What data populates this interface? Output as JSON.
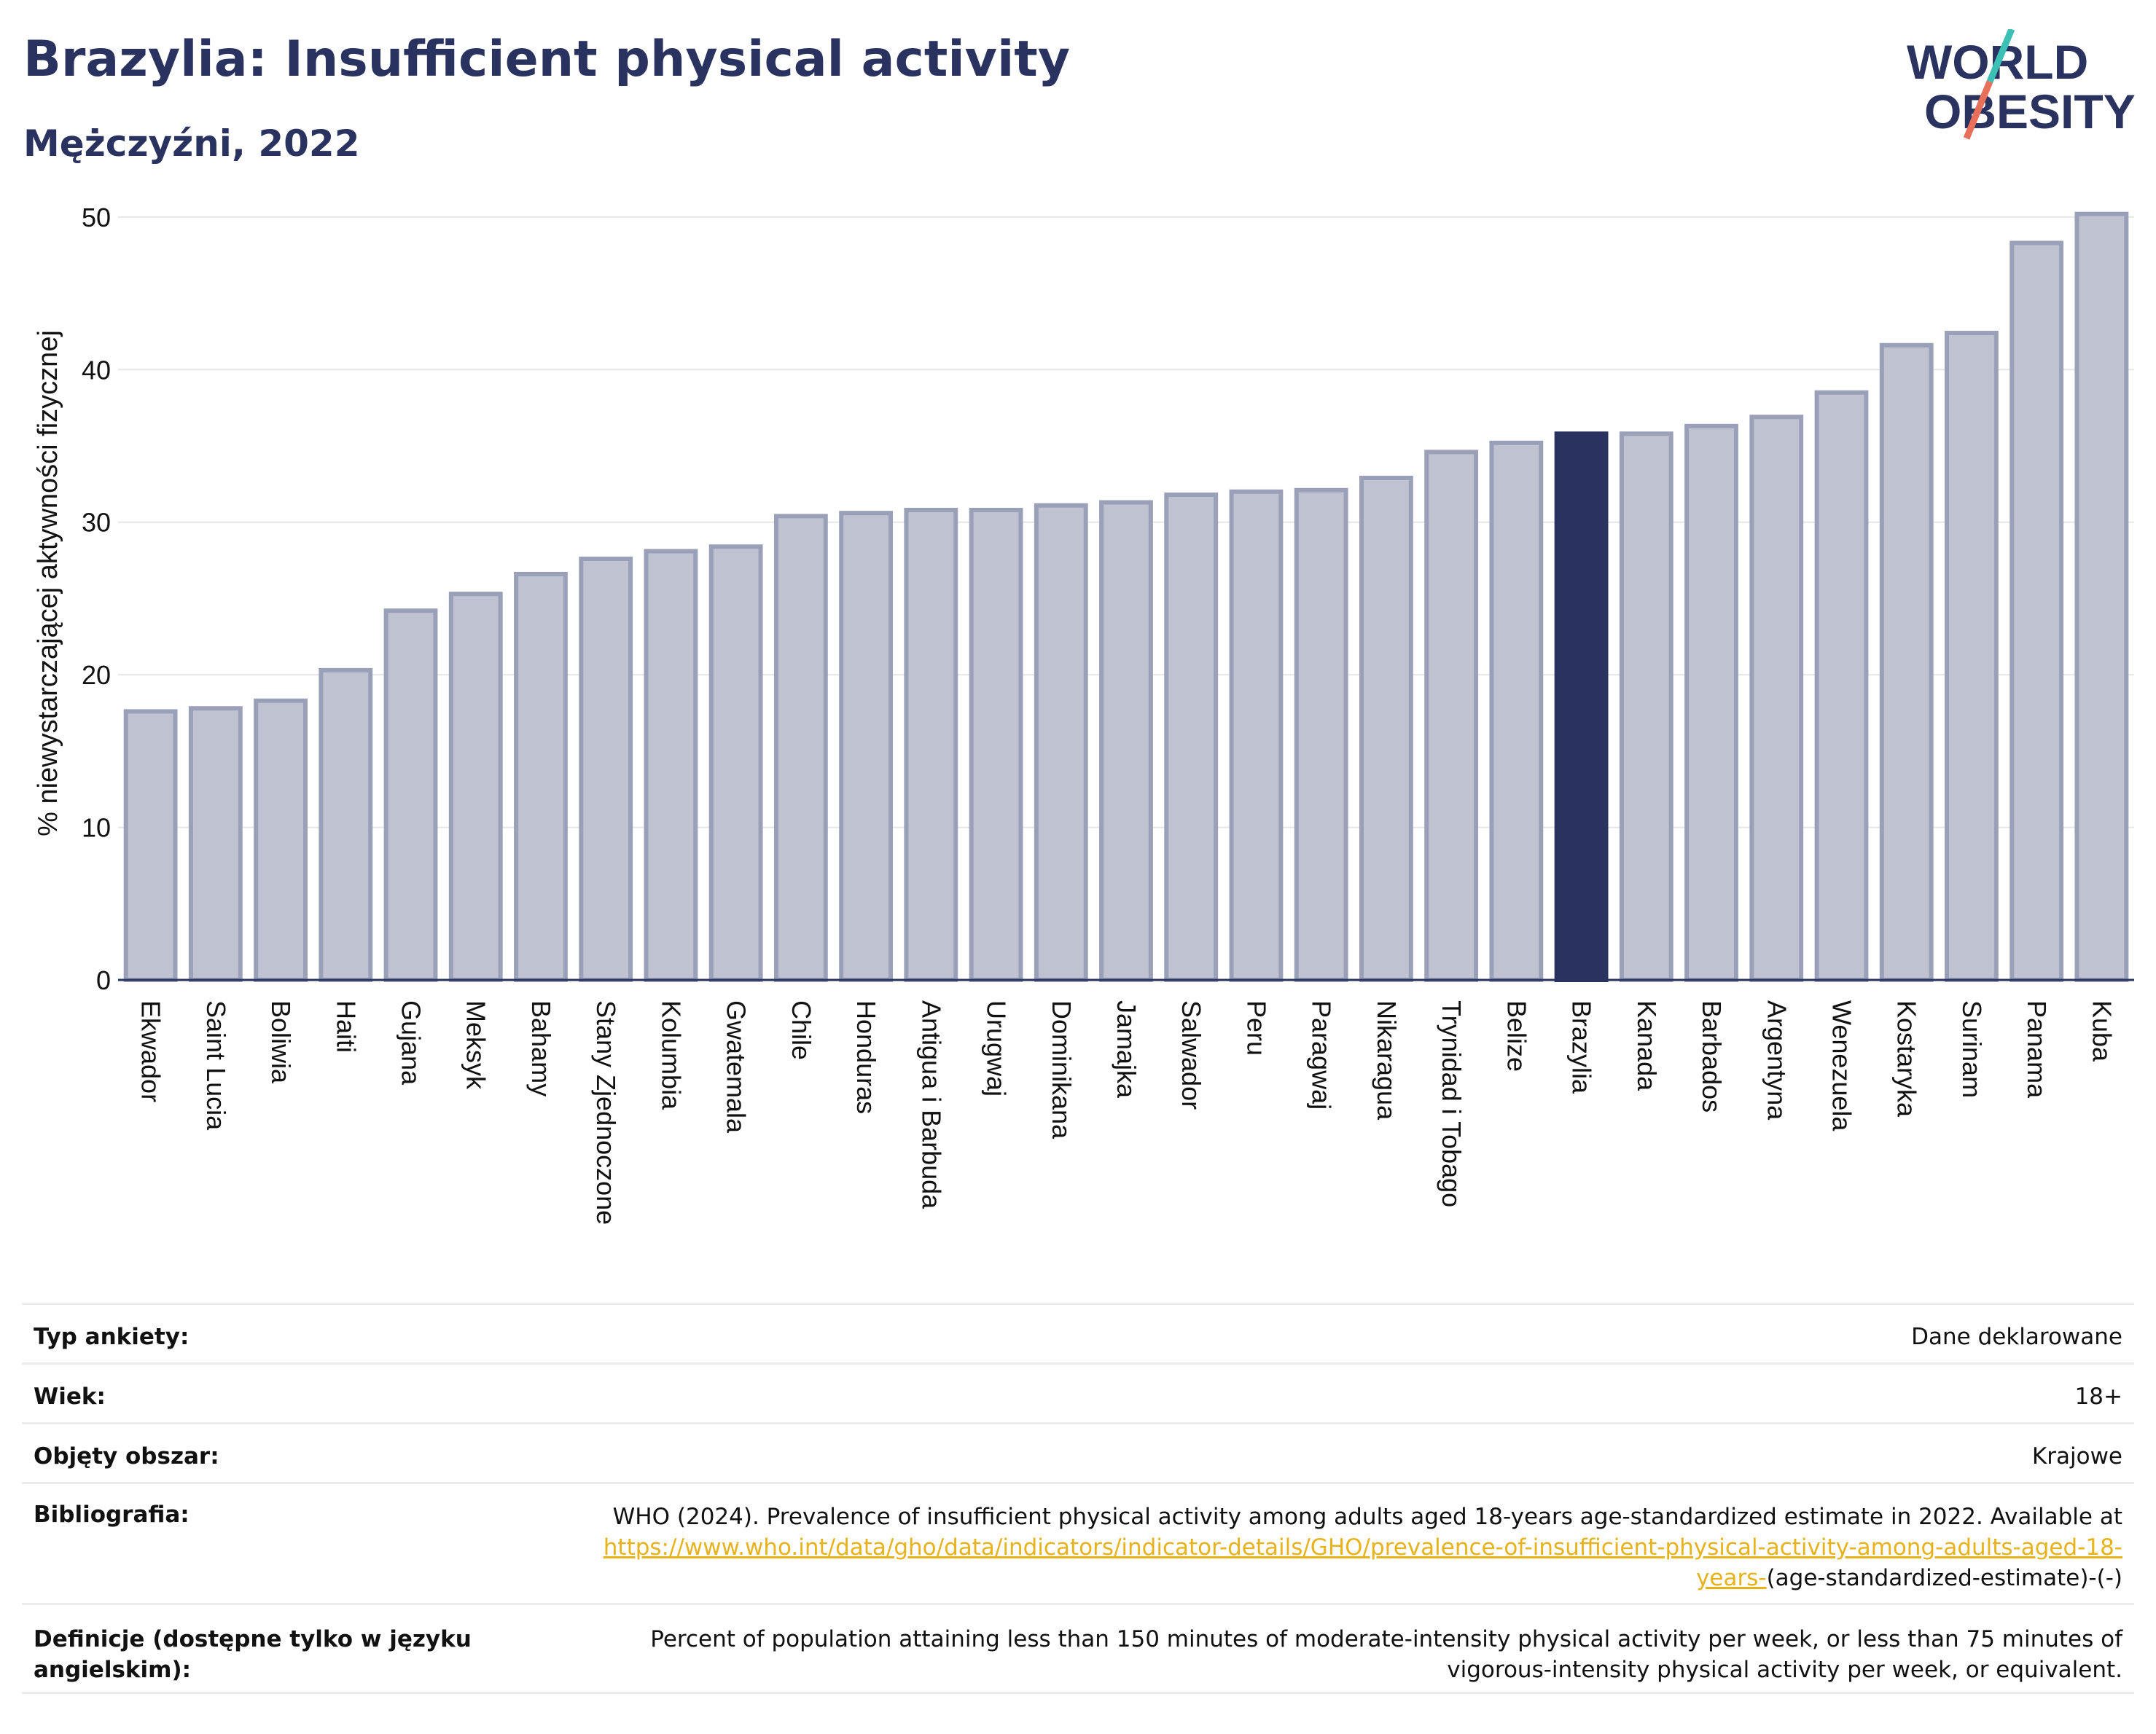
{
  "header": {
    "title": "Brazylia: Insufficient physical activity",
    "subtitle": "Mężczyźni, 2022",
    "logo_line1": "WORLD",
    "logo_line2": "OBESITY"
  },
  "chart_data": {
    "type": "bar",
    "ylabel": "% niewystarczającej aktywności fizycznej",
    "ylim": [
      0,
      52
    ],
    "yticks": [
      0,
      10,
      20,
      30,
      40,
      50
    ],
    "grid": true,
    "highlight": "Brazylia",
    "colors": {
      "bar": "#bfc2d0",
      "bar_border": "#9aa0b8",
      "highlight": "#2a3360",
      "grid": "#e6e6e6"
    },
    "categories": [
      "Ekwador",
      "Saint Lucia",
      "Boliwia",
      "Haiti",
      "Gujana",
      "Meksyk",
      "Bahamy",
      "Stany Zjednoczone",
      "Kolumbia",
      "Gwatemala",
      "Chile",
      "Honduras",
      "Antigua i Barbuda",
      "Urugwaj",
      "Dominikana",
      "Jamajka",
      "Salwador",
      "Peru",
      "Paragwaj",
      "Nikaragua",
      "Trynidad i Tobago",
      "Belize",
      "Brazylia",
      "Kanada",
      "Barbados",
      "Argentyna",
      "Wenezuela",
      "Kostaryka",
      "Surinam",
      "Panama",
      "Kuba"
    ],
    "values": [
      17.6,
      17.8,
      18.3,
      20.3,
      24.2,
      25.3,
      26.6,
      27.6,
      28.1,
      28.4,
      30.4,
      30.6,
      30.8,
      30.8,
      31.1,
      31.3,
      31.8,
      32.0,
      32.1,
      32.9,
      34.6,
      35.2,
      35.8,
      35.8,
      36.3,
      36.9,
      38.5,
      41.6,
      42.4,
      48.3,
      50.2
    ]
  },
  "info_table": {
    "survey_type_label": "Typ ankiety:",
    "survey_type_value": "Dane deklarowane",
    "age_label": "Wiek:",
    "age_value": "18+",
    "area_label": "Objęty obszar:",
    "area_value": "Krajowe",
    "biblio_label": "Bibliografia:",
    "biblio_text": "WHO (2024). Prevalence of insufficient physical activity among adults aged 18-years age-standardized estimate in 2022. Available at ",
    "biblio_link": "https://www.who.int/data/gho/data/indicators/indicator-details/GHO/prevalence-of-insufficient-physical-activity-among-adults-aged-18-years-",
    "biblio_suffix": "(age-standardized-estimate)-(-)",
    "definition_label": "Definicje (dostępne tylko w języku angielskim):",
    "definition_value": "Percent of population attaining less than 150 minutes of moderate-intensity physical activity per week, or less than 75 minutes of vigorous-intensity physical activity per week, or equivalent."
  }
}
